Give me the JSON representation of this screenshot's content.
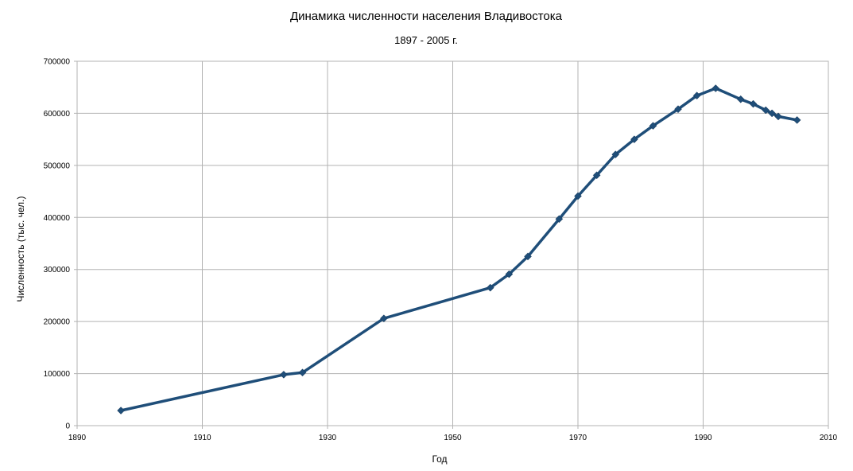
{
  "chart_data": {
    "type": "line",
    "title": "Динамика численности населения Владивостока",
    "subtitle": "1897 - 2005 г.",
    "xlabel": "Год",
    "ylabel": "Численность (тыс. чел.)",
    "xlim": [
      1890,
      2010
    ],
    "ylim": [
      0,
      700000
    ],
    "xticks": [
      1890,
      1910,
      1930,
      1950,
      1970,
      1990,
      2010
    ],
    "xtick_labels": [
      "1890",
      "1910",
      "1930",
      "1950",
      "1970",
      "1990",
      "2010"
    ],
    "yticks": [
      0,
      100000,
      200000,
      300000,
      400000,
      500000,
      600000,
      700000
    ],
    "ytick_labels": [
      "0",
      "100000",
      "200000",
      "300000",
      "400000",
      "500000",
      "600000",
      "700000"
    ],
    "grid": true,
    "legend": "none",
    "colors": {
      "line": "#1f4e79",
      "marker": "#1f4e79",
      "grid": "#b3b3b3",
      "axis": "#b3b3b3"
    },
    "series": [
      {
        "x": [
          1897,
          1923,
          1926,
          1939,
          1956,
          1959,
          1962,
          1967,
          1970,
          1973,
          1976,
          1979,
          1982,
          1986,
          1989,
          1992,
          1996,
          1998,
          2000,
          2001,
          2002,
          2005
        ],
        "y": [
          29000,
          98000,
          102000,
          206000,
          265000,
          291000,
          325000,
          397000,
          441000,
          481000,
          521000,
          550000,
          576000,
          608000,
          634000,
          648000,
          627000,
          618000,
          606000,
          600000,
          594000,
          587000
        ]
      }
    ]
  }
}
